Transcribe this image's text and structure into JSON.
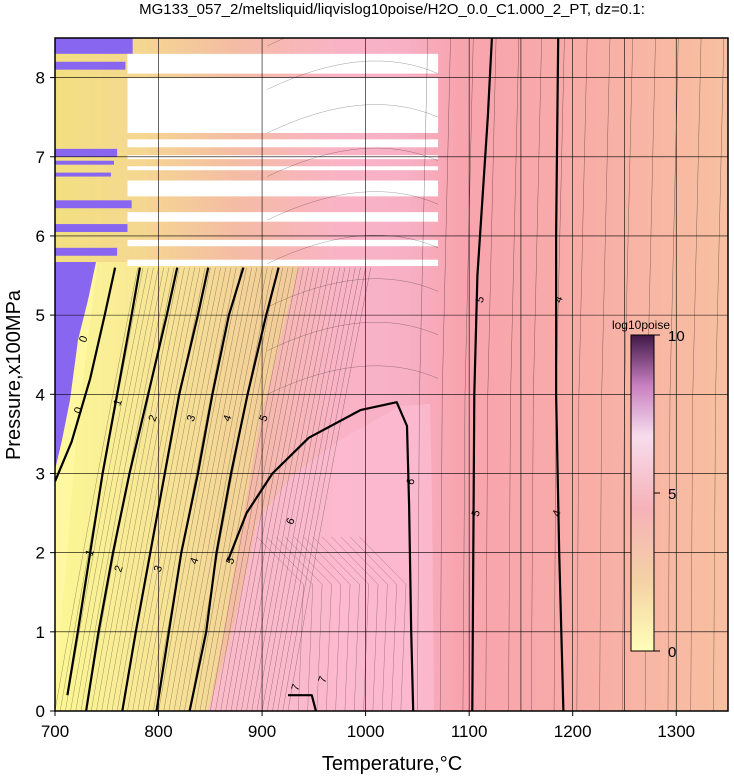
{
  "chart_data": {
    "type": "heatmap",
    "title": "MG133_057_2/meltsliquid/liqvislog10poise/H2O_0.0_C1.000_2_PT, dz=0.1:",
    "xlabel": "Temperature,°C",
    "ylabel": "Pressure,x100MPa",
    "xlim": [
      700,
      1350
    ],
    "ylim": [
      0,
      8.5
    ],
    "x_ticks": [
      700,
      800,
      900,
      1000,
      1100,
      1200,
      1300
    ],
    "y_ticks": [
      0,
      1,
      2,
      3,
      4,
      5,
      6,
      7,
      8
    ],
    "grid": true,
    "z_label": "log10poise",
    "z_range": [
      0,
      10
    ],
    "colorbar_ticks": [
      0,
      5,
      10
    ],
    "colorbar_position": "right",
    "colormap": [
      "#ffffb8",
      "#f4e89c",
      "#f0c8a0",
      "#f8aab0",
      "#fbb4cc",
      "#f6e0ee",
      "#b060a0",
      "#401848"
    ],
    "low_value_color": "#8060f0",
    "contour_interval": 0.1,
    "major_contours": [
      {
        "level": 0,
        "points": [
          [
            700,
            2.9
          ],
          [
            716,
            3.4
          ],
          [
            734,
            4.2
          ],
          [
            748,
            5.0
          ],
          [
            758,
            5.6
          ]
        ]
      },
      {
        "level": 1,
        "points": [
          [
            712,
            0.2
          ],
          [
            722,
            1.0
          ],
          [
            734,
            2.0
          ],
          [
            746,
            3.0
          ],
          [
            760,
            4.0
          ],
          [
            774,
            5.0
          ],
          [
            782,
            5.6
          ]
        ]
      },
      {
        "level": 2,
        "points": [
          [
            730,
            0.0
          ],
          [
            742,
            1.0
          ],
          [
            756,
            2.0
          ],
          [
            772,
            3.0
          ],
          [
            790,
            4.0
          ],
          [
            808,
            5.0
          ],
          [
            818,
            5.6
          ]
        ]
      },
      {
        "level": 3,
        "points": [
          [
            765,
            0.0
          ],
          [
            778,
            1.0
          ],
          [
            792,
            2.0
          ],
          [
            806,
            3.0
          ],
          [
            820,
            4.0
          ],
          [
            838,
            5.0
          ],
          [
            848,
            5.6
          ]
        ]
      },
      {
        "level": 4,
        "points": [
          [
            798,
            0.0
          ],
          [
            810,
            1.0
          ],
          [
            822,
            2.0
          ],
          [
            838,
            3.0
          ],
          [
            852,
            4.0
          ],
          [
            868,
            5.0
          ],
          [
            882,
            5.6
          ]
        ]
      },
      {
        "level": 5,
        "points": [
          [
            830,
            0.0
          ],
          [
            846,
            1.0
          ],
          [
            856,
            2.0
          ],
          [
            870,
            3.0
          ],
          [
            886,
            4.0
          ],
          [
            904,
            5.0
          ],
          [
            916,
            5.6
          ]
        ]
      },
      {
        "level": 6,
        "points": [
          [
            867,
            1.9
          ],
          [
            885,
            2.5
          ],
          [
            910,
            3.0
          ],
          [
            945,
            3.45
          ],
          [
            995,
            3.8
          ],
          [
            1030,
            3.9
          ],
          [
            1040,
            3.6
          ],
          [
            1042,
            2.6
          ],
          [
            1044,
            1.0
          ],
          [
            1046,
            0.0
          ]
        ]
      },
      {
        "level": 5,
        "points": [
          [
            1103,
            0.0
          ],
          [
            1104,
            2.0
          ],
          [
            1105,
            4.0
          ],
          [
            1108,
            5.5
          ],
          [
            1118,
            7.5
          ],
          [
            1122,
            8.5
          ]
        ]
      },
      {
        "level": 4,
        "points": [
          [
            1191,
            0.0
          ],
          [
            1187,
            2.0
          ],
          [
            1184,
            4.0
          ],
          [
            1184,
            6.0
          ],
          [
            1186,
            8.5
          ]
        ]
      },
      {
        "level": 7,
        "points": [
          [
            925,
            0.2
          ],
          [
            948,
            0.2
          ],
          [
            952,
            0.0
          ]
        ]
      }
    ],
    "contour_labels": [
      {
        "text": "0",
        "x": 722,
        "y": 3.8
      },
      {
        "text": "0",
        "x": 727,
        "y": 4.7
      },
      {
        "text": "1",
        "x": 733,
        "y": 2.0
      },
      {
        "text": "1",
        "x": 760,
        "y": 3.9
      },
      {
        "text": "2",
        "x": 761,
        "y": 1.8
      },
      {
        "text": "2",
        "x": 794,
        "y": 3.7
      },
      {
        "text": "3",
        "x": 799,
        "y": 1.8
      },
      {
        "text": "3",
        "x": 831,
        "y": 3.7
      },
      {
        "text": "4",
        "x": 834,
        "y": 1.9
      },
      {
        "text": "4",
        "x": 866,
        "y": 3.7
      },
      {
        "text": "5",
        "x": 869,
        "y": 1.9
      },
      {
        "text": "5",
        "x": 901,
        "y": 3.7
      },
      {
        "text": "6",
        "x": 927,
        "y": 2.4
      },
      {
        "text": "6",
        "x": 1043,
        "y": 2.9
      },
      {
        "text": "7",
        "x": 932,
        "y": 0.3
      },
      {
        "text": "7",
        "x": 958,
        "y": 0.4
      },
      {
        "text": "5",
        "x": 1110,
        "y": 5.2
      },
      {
        "text": "5",
        "x": 1106,
        "y": 2.5
      },
      {
        "text": "4",
        "x": 1186,
        "y": 5.2
      },
      {
        "text": "4",
        "x": 1184,
        "y": 2.5
      }
    ]
  }
}
